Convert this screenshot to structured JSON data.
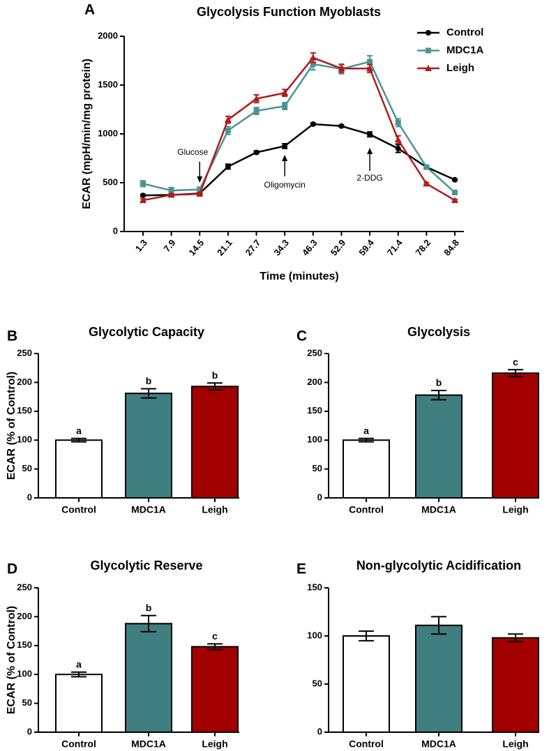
{
  "chart_data": [
    {
      "type": "line",
      "panel": "A",
      "title": "Glycolysis Function Myoblasts",
      "x_label": "Time (minutes)",
      "y_label": "ECAR (mpH/min/mg protein)",
      "categories": [
        "1.3",
        "7.9",
        "14.5",
        "21.1",
        "27.7",
        "34.3",
        "46.3",
        "52.9",
        "59.4",
        "71.4",
        "78.2",
        "84.8"
      ],
      "ylim": [
        0,
        2000
      ],
      "yticks": [
        0,
        500,
        1000,
        1500,
        2000
      ],
      "series": [
        {
          "name": "Control",
          "color": "#000000",
          "marker": "circle",
          "values": [
            370,
            375,
            390,
            665,
            810,
            875,
            1100,
            1080,
            995,
            850,
            660,
            530
          ],
          "errors": [
            10,
            10,
            10,
            25,
            15,
            25,
            10,
            10,
            25,
            40,
            15,
            10
          ]
        },
        {
          "name": "MDC1A",
          "color": "#4a9494",
          "marker": "square",
          "values": [
            490,
            420,
            430,
            1035,
            1235,
            1285,
            1715,
            1665,
            1740,
            1115,
            660,
            400
          ],
          "errors": [
            30,
            30,
            25,
            40,
            35,
            35,
            60,
            50,
            60,
            40,
            15,
            20
          ]
        },
        {
          "name": "Leigh",
          "color": "#b01c1c",
          "marker": "triangle",
          "values": [
            320,
            375,
            385,
            1145,
            1360,
            1420,
            1780,
            1670,
            1670,
            940,
            490,
            320
          ],
          "errors": [
            15,
            10,
            15,
            35,
            40,
            35,
            50,
            40,
            40,
            40,
            10,
            10
          ]
        }
      ],
      "annotations": [
        {
          "text": "Glucose",
          "x": "14.5"
        },
        {
          "text": "Oligomycin",
          "x": "34.3"
        },
        {
          "text": "2-DDG",
          "x": "59.4"
        }
      ]
    },
    {
      "type": "bar",
      "panel": "B",
      "title": "Glycolytic Capacity",
      "y_label": "ECAR (% of Control)",
      "categories": [
        "Control",
        "MDC1A",
        "Leigh"
      ],
      "values": [
        100,
        181,
        193
      ],
      "errors": [
        3,
        8,
        6
      ],
      "letters": [
        "a",
        "b",
        "b"
      ],
      "colors": [
        "#ffffff",
        "#3f7f7f",
        "#a30000"
      ],
      "ylim": [
        0,
        250
      ],
      "yticks": [
        0,
        50,
        100,
        150,
        200,
        250
      ]
    },
    {
      "type": "bar",
      "panel": "C",
      "title": "Glycolysis",
      "categories": [
        "Control",
        "MDC1A",
        "Leigh"
      ],
      "values": [
        100,
        178,
        216
      ],
      "errors": [
        3,
        8,
        6
      ],
      "letters": [
        "a",
        "b",
        "c"
      ],
      "colors": [
        "#ffffff",
        "#3f7f7f",
        "#a30000"
      ],
      "ylim": [
        0,
        250
      ],
      "yticks": [
        0,
        50,
        100,
        150,
        200,
        250
      ]
    },
    {
      "type": "bar",
      "panel": "D",
      "title": "Glycolytic Reserve",
      "y_label": "ECAR (% of Control)",
      "categories": [
        "Control",
        "MDC1A",
        "Leigh"
      ],
      "values": [
        100,
        188,
        148
      ],
      "errors": [
        4,
        14,
        5
      ],
      "letters": [
        "a",
        "b",
        "c"
      ],
      "colors": [
        "#ffffff",
        "#3f7f7f",
        "#a30000"
      ],
      "ylim": [
        0,
        250
      ],
      "yticks": [
        0,
        50,
        100,
        150,
        200,
        250
      ]
    },
    {
      "type": "bar",
      "panel": "E",
      "title": "Non-glycolytic Acidification",
      "categories": [
        "Control",
        "MDC1A",
        "Leigh"
      ],
      "values": [
        100,
        111,
        98
      ],
      "errors": [
        5,
        9,
        4
      ],
      "colors": [
        "#ffffff",
        "#3f7f7f",
        "#a30000"
      ],
      "ylim": [
        0,
        150
      ],
      "yticks": [
        0,
        50,
        100,
        150
      ]
    }
  ]
}
